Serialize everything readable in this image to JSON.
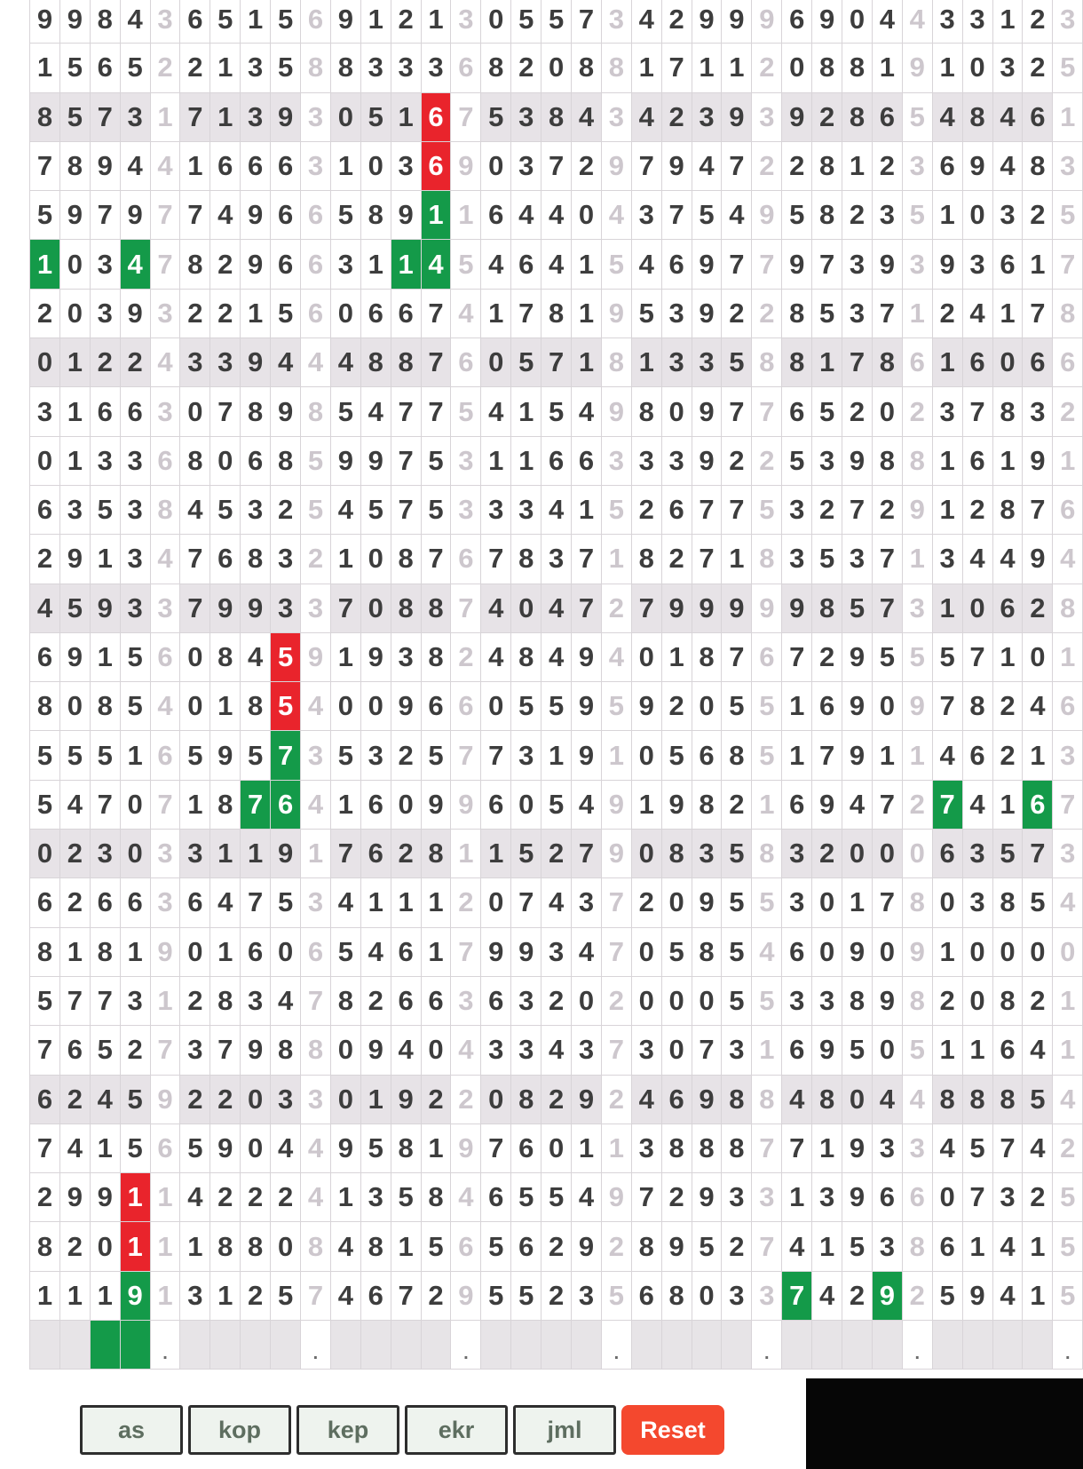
{
  "board": {
    "columns": 35,
    "group_size": 5,
    "sum_column_indices": [
      5,
      10,
      15,
      20,
      25,
      30,
      35
    ],
    "shaded_row_numbers": [
      3,
      8,
      13,
      18,
      23
    ],
    "rows": [
      "99843651569121305573429996904433123",
      "15652213588333682088171120881910325",
      "85731713930516753843423939286548461",
      "78944166631036903729794722812369483",
      "59797749665891164404375495823510325",
      "10347829663114546415469779739393617",
      "20393221560667417819539228537124178",
      "01224339444887605718133588178616066",
      "31663078985477541549809776520237832",
      "01336806859975311663339225398816191",
      "63538453254575333415267753272912876",
      "29134768321087678371827183537134494",
      "45933799337088740472799999857310628",
      "69156084591938248494018767295557101",
      "80854018540096605595920551690978246",
      "55516595735325773191056851791146213",
      "54707187641609960549198216947274167",
      "02303311917628115279083583200063573",
      "62663647534111207437209553017803854",
      "81819016065461799347058546090910000",
      "57731283478266363202000553389820821",
      "76527379880940433437307316950511641",
      "62459220330192208292469884804488854",
      "74156590449581976011388877193345742",
      "29911422241358465549729331396607325",
      "82011188084815656292895274153861415",
      "11191312574672955235680337429259415"
    ],
    "highlights": [
      {
        "row": 3,
        "col": 14,
        "color": "red"
      },
      {
        "row": 4,
        "col": 14,
        "color": "red"
      },
      {
        "row": 5,
        "col": 14,
        "color": "green"
      },
      {
        "row": 6,
        "col": 1,
        "color": "green"
      },
      {
        "row": 6,
        "col": 4,
        "color": "green"
      },
      {
        "row": 6,
        "col": 13,
        "color": "green"
      },
      {
        "row": 6,
        "col": 14,
        "color": "green"
      },
      {
        "row": 14,
        "col": 9,
        "color": "red"
      },
      {
        "row": 15,
        "col": 9,
        "color": "red"
      },
      {
        "row": 16,
        "col": 9,
        "color": "green"
      },
      {
        "row": 17,
        "col": 8,
        "color": "green"
      },
      {
        "row": 17,
        "col": 9,
        "color": "green"
      },
      {
        "row": 17,
        "col": 31,
        "color": "green"
      },
      {
        "row": 17,
        "col": 34,
        "color": "green"
      },
      {
        "row": 25,
        "col": 4,
        "color": "red"
      },
      {
        "row": 26,
        "col": 4,
        "color": "red"
      },
      {
        "row": 27,
        "col": 4,
        "color": "green"
      },
      {
        "row": 27,
        "col": 26,
        "color": "green"
      },
      {
        "row": 27,
        "col": 29,
        "color": "green"
      }
    ],
    "summary_row": {
      "green_cols": [
        3,
        4
      ],
      "dot_cols": [
        5,
        10,
        15,
        20,
        25,
        30,
        35
      ],
      "dot_char": "."
    }
  },
  "toolbar": {
    "buttons": [
      {
        "label": "as"
      },
      {
        "label": "kop"
      },
      {
        "label": "kep"
      },
      {
        "label": "ekr"
      },
      {
        "label": "jml"
      }
    ],
    "reset_label": "Reset"
  },
  "colors": {
    "highlight_red": "#e9242c",
    "highlight_green": "#149a49",
    "shaded_row_bg": "#e7e3e7",
    "digit": "#3d3d3d",
    "sum_digit": "#cdc7cd",
    "reset_button_bg": "#f4482e",
    "panel_bg": "#060606"
  }
}
